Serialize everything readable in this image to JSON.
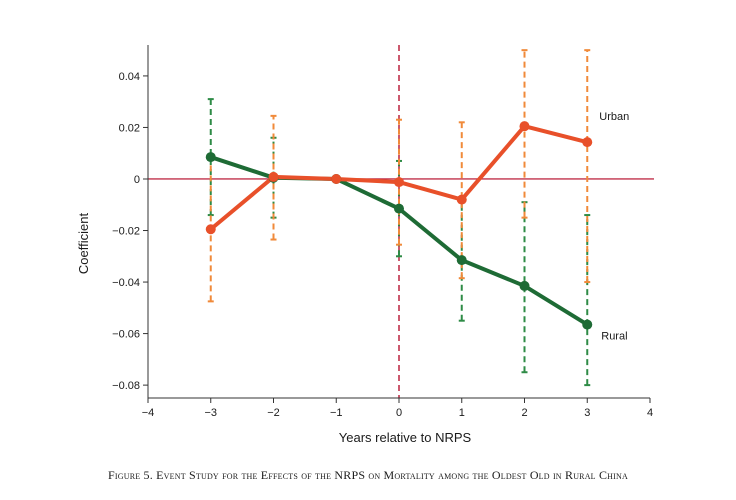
{
  "chart_data": {
    "type": "line",
    "title": "",
    "xlabel": "Years relative to NRPS",
    "ylabel": "Coefficient",
    "x": [
      -3,
      -2,
      -1,
      0,
      1,
      2,
      3
    ],
    "xlim": [
      -4,
      4
    ],
    "ylim": [
      -0.085,
      0.052
    ],
    "xticks": [
      -4,
      -3,
      -2,
      -1,
      0,
      1,
      2,
      3,
      4
    ],
    "xtick_labels": [
      "−4",
      "−3",
      "−2",
      "−1",
      "0",
      "1",
      "2",
      "3",
      "4"
    ],
    "yticks": [
      -0.08,
      -0.06,
      -0.04,
      -0.02,
      0,
      0.02,
      0.04
    ],
    "ytick_labels": [
      "−0.08",
      "−0.06",
      "−0.04",
      "−0.02",
      "0",
      "0.02",
      "0.04"
    ],
    "reference_lines": {
      "horizontal_y": 0,
      "horizontal_color": "#c0304a",
      "vertical_x": 0,
      "vertical_color": "#c0304a"
    },
    "series": [
      {
        "name": "Rural",
        "label": "Rural",
        "color": "#1e6b35",
        "ci_color": "#2e8b46",
        "values": [
          0.0085,
          0.0005,
          0.0,
          -0.0115,
          -0.0315,
          -0.0415,
          -0.0565
        ],
        "ci_low": [
          -0.014,
          -0.015,
          null,
          -0.03,
          -0.055,
          -0.075,
          -0.08
        ],
        "ci_high": [
          0.031,
          0.016,
          null,
          0.007,
          -0.008,
          -0.009,
          -0.014
        ]
      },
      {
        "name": "Urban",
        "label": "Urban",
        "color": "#e8502a",
        "ci_color": "#f08a3a",
        "values": [
          -0.0195,
          0.0008,
          0.0,
          -0.0012,
          -0.008,
          0.0205,
          0.0143
        ],
        "ci_low": [
          -0.0475,
          -0.0235,
          null,
          -0.0255,
          -0.0385,
          -0.015,
          -0.04
        ],
        "ci_high": [
          0.0085,
          0.0245,
          null,
          0.023,
          0.022,
          0.05,
          0.05
        ]
      }
    ]
  },
  "caption": "Figure 5. Event Study for the Effects of the NRPS on Mortality among the Oldest Old in Rural China"
}
